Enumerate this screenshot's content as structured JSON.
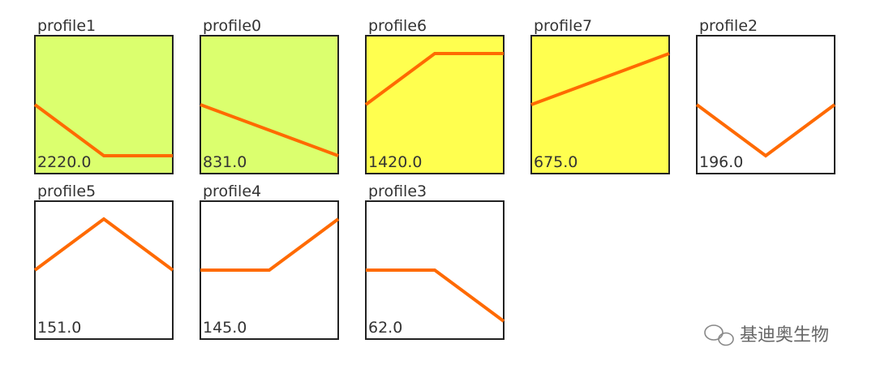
{
  "chart_data": {
    "type": "line",
    "color": "#ff6a00",
    "x": [
      0,
      1,
      2
    ],
    "xlim": [
      0,
      2
    ],
    "ylim": [
      -1.35,
      1.35
    ],
    "panels": [
      {
        "name": "profile1",
        "count": "2220.0",
        "values": [
          0,
          -1,
          -1
        ],
        "background": "#dbff6e"
      },
      {
        "name": "profile0",
        "count": "831.0",
        "values": [
          0,
          -0.5,
          -1
        ],
        "background": "#dbff6e"
      },
      {
        "name": "profile6",
        "count": "1420.0",
        "values": [
          0,
          1,
          1
        ],
        "background": "#ffff4f"
      },
      {
        "name": "profile7",
        "count": "675.0",
        "values": [
          0,
          0.5,
          1
        ],
        "background": "#ffff4f"
      },
      {
        "name": "profile2",
        "count": "196.0",
        "values": [
          0,
          -1,
          0
        ],
        "background": "#ffffff"
      },
      {
        "name": "profile5",
        "count": "151.0",
        "values": [
          0,
          1,
          0
        ],
        "background": "#ffffff"
      },
      {
        "name": "profile4",
        "count": "145.0",
        "values": [
          0,
          0,
          1
        ],
        "background": "#ffffff"
      },
      {
        "name": "profile3",
        "count": "62.0",
        "values": [
          0,
          0,
          -1
        ],
        "background": "#ffffff"
      }
    ]
  },
  "watermark": "基迪奥生物"
}
